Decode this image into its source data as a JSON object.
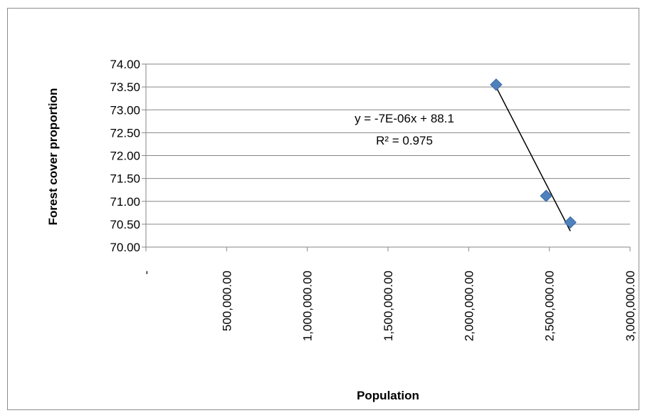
{
  "chart_data": {
    "type": "scatter",
    "title": "",
    "xlabel": "Population",
    "ylabel": "Forest cover proportion",
    "xlim": [
      0,
      3000000
    ],
    "ylim": [
      70.0,
      74.0
    ],
    "x_ticks": [
      0,
      500000,
      1000000,
      1500000,
      2000000,
      2500000,
      3000000
    ],
    "x_tick_labels": [
      "-",
      "500,000.00",
      "1,000,000.00",
      "1,500,000.00",
      "2,000,000.00",
      "2,500,000.00",
      "3,000,000.00"
    ],
    "y_ticks": [
      70.0,
      70.5,
      71.0,
      71.5,
      72.0,
      72.5,
      73.0,
      73.5,
      74.0
    ],
    "y_tick_labels": [
      "70.00",
      "70.50",
      "71.00",
      "71.50",
      "72.00",
      "72.50",
      "73.00",
      "73.50",
      "74.00"
    ],
    "grid": "horizontal",
    "series": [
      {
        "points": [
          {
            "x": 2170000,
            "y": 73.55
          },
          {
            "x": 2480000,
            "y": 71.12
          },
          {
            "x": 2630000,
            "y": 70.54
          }
        ],
        "marker": "diamond",
        "color": "#4f81bd"
      }
    ],
    "trendline": {
      "type": "linear",
      "from": {
        "x": 2170000,
        "y": 73.5
      },
      "to": {
        "x": 2630000,
        "y": 70.35
      },
      "color": "#000000"
    },
    "annotations": {
      "equation": "y = -7E-06x + 88.1",
      "r_squared": "R² = 0.975"
    }
  }
}
